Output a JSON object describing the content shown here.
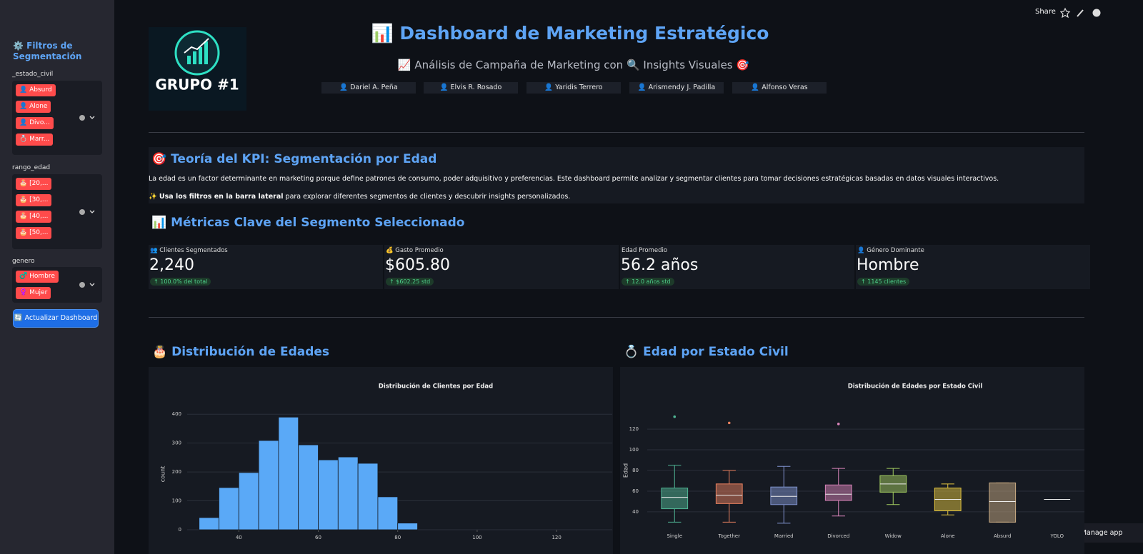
{
  "toolbar": {
    "share": "Share",
    "manage": "Manage app"
  },
  "sidebar": {
    "title": "⚙️ Filtros de Segmentación",
    "filters": [
      {
        "label": "_estado_civil",
        "tags": [
          "👤 Absurd",
          "👤 Alone",
          "👤 Divo...",
          "💍 Marr..."
        ]
      },
      {
        "label": "rango_edad",
        "tags": [
          "🎂 [20,...",
          "🎂 [30,...",
          "🎂 [40,...",
          "🎂 [50,..."
        ]
      },
      {
        "label": "genero",
        "tags": [
          "♂️ Hombre",
          "♀️ Mujer"
        ]
      }
    ],
    "button": "🔄 Actualizar Dashboard"
  },
  "header": {
    "logo_text": "GRUPO #1",
    "title": "📊 Dashboard de Marketing Estratégico",
    "subtitle": "📈 Análisis de Campaña de Marketing con 🔍 Insights Visuales 🎯",
    "team": [
      "👤 Dariel A. Peña",
      "👤 Elvis R. Rosado",
      "👤 Yaridis Terrero",
      "👤 Arismendy J. Padilla",
      "👤 Alfonso Veras"
    ]
  },
  "kpi": {
    "heading": "🎯 Teoría del KPI: Segmentación por Edad",
    "text": "La edad es un factor determinante en marketing porque define patrones de consumo, poder adquisitivo y preferencias. Este dashboard permite analizar y segmentar clientes para tomar decisiones estratégicas basadas en datos visuales interactivos.",
    "hint_icon": "✨",
    "hint_bold": "Usa los filtros en la barra lateral",
    "hint_rest": "para explorar diferentes segmentos de clientes y descubrir insights personalizados."
  },
  "metrics": {
    "heading": "📊 Métricas Clave del Segmento Seleccionado",
    "cards": [
      {
        "label": "👥 Clientes Segmentados",
        "value": "2,240",
        "delta": "↑ 100.0% del total"
      },
      {
        "label": "💰 Gasto Promedio",
        "value": "$605.80",
        "delta": "↑ $602.25 std"
      },
      {
        "label": "Edad Promedio",
        "value": "56.2 años",
        "delta": "↑ 12.0 años std"
      },
      {
        "label": "👤 Género Dominante",
        "value": "Hombre",
        "delta": "↑ 1145 clientes"
      }
    ]
  },
  "sections": {
    "hist": "🎂 Distribución de Edades",
    "box": "💍 Edad por Estado Civil"
  },
  "chart_data": [
    {
      "type": "histogram",
      "title": "Distribución de Clientes por Edad",
      "y_label": "count",
      "color": "#5aa9f7",
      "bins": [
        30,
        35,
        40,
        45,
        50,
        55,
        60,
        65,
        70,
        75,
        80,
        85
      ],
      "values": [
        42,
        146,
        198,
        309,
        390,
        294,
        242,
        252,
        230,
        114,
        23
      ],
      "xlim": [
        27,
        134
      ],
      "xticks": [
        40,
        60,
        80,
        100,
        120
      ],
      "ylim": [
        0,
        450
      ],
      "yticks": [
        0,
        100,
        200,
        300,
        400
      ],
      "grid": true
    },
    {
      "type": "box",
      "title": "Distribución de Edades por Estado Civil",
      "y_label": "Edad",
      "categories": [
        "Single",
        "Together",
        "Married",
        "Divorced",
        "Widow",
        "Alone",
        "Absurd",
        "YOLO"
      ],
      "colors": [
        "#4fb594",
        "#e8805f",
        "#8093cf",
        "#d984ba",
        "#a3cc60",
        "#e3c53f",
        "#c9ab84",
        "#9a9a9a"
      ],
      "boxes": [
        {
          "min": 30,
          "q1": 43,
          "median": 54,
          "q3": 63,
          "max": 85,
          "outliers": [
            132
          ]
        },
        {
          "min": 30,
          "q1": 48,
          "median": 56,
          "q3": 67,
          "max": 80,
          "outliers": [
            126
          ]
        },
        {
          "min": 29,
          "q1": 47,
          "median": 55,
          "q3": 64,
          "max": 84,
          "outliers": []
        },
        {
          "min": 36,
          "q1": 51,
          "median": 57,
          "q3": 66,
          "max": 82,
          "outliers": [
            125
          ]
        },
        {
          "min": 47,
          "q1": 59,
          "median": 67,
          "q3": 75,
          "max": 82,
          "outliers": []
        },
        {
          "min": 37,
          "q1": 41,
          "median": 52,
          "q3": 63,
          "max": 67,
          "outliers": []
        },
        {
          "min": 30,
          "q1": 30,
          "median": 50,
          "q3": 68,
          "max": 68,
          "outliers": []
        },
        {
          "min": 52,
          "q1": 52,
          "median": 52,
          "q3": 52,
          "max": 52,
          "outliers": []
        }
      ],
      "ylim": [
        22,
        138
      ],
      "yticks": [
        40,
        60,
        80,
        100,
        120
      ],
      "grid": true
    }
  ]
}
